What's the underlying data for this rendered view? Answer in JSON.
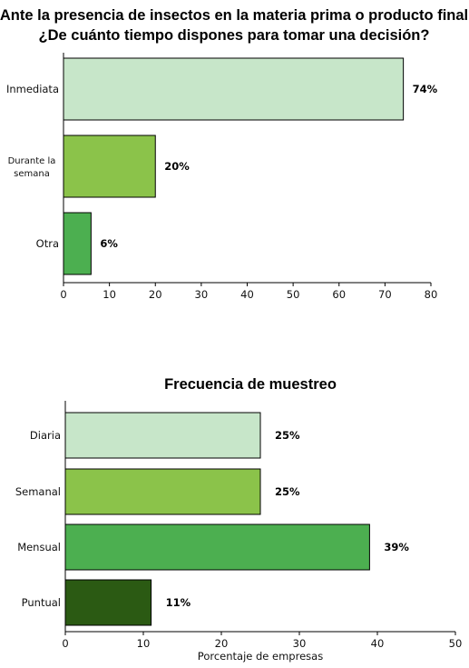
{
  "chart_data": [
    {
      "type": "bar",
      "orientation": "horizontal",
      "title_lines": [
        "Ante la presencia de insectos en la materia prima o producto final",
        "¿De cuánto tiempo dispones para tomar una decisión?"
      ],
      "categories": [
        {
          "lines": [
            "Inmediata"
          ]
        },
        {
          "lines": [
            "Durante la",
            "semana"
          ]
        },
        {
          "lines": [
            "Otra"
          ]
        }
      ],
      "values": [
        74,
        20,
        6
      ],
      "value_labels": [
        "74%",
        "20%",
        "6%"
      ],
      "colors": [
        "#c7e6c9",
        "#8bc34a",
        "#4caf50"
      ],
      "xlim": [
        0,
        80
      ],
      "xticks": [
        "0",
        "10",
        "20",
        "30",
        "40",
        "50",
        "60",
        "70",
        "80"
      ],
      "xlabel": "",
      "grid": false,
      "legend": "none"
    },
    {
      "type": "bar",
      "orientation": "horizontal",
      "title_lines": [
        "Frecuencia de muestreo"
      ],
      "categories": [
        {
          "lines": [
            "Diaria"
          ]
        },
        {
          "lines": [
            "Semanal"
          ]
        },
        {
          "lines": [
            "Mensual"
          ]
        },
        {
          "lines": [
            "Puntual"
          ]
        }
      ],
      "values": [
        25,
        25,
        39,
        11
      ],
      "value_labels": [
        "25%",
        "25%",
        "39%",
        "11%"
      ],
      "colors": [
        "#c7e6c9",
        "#8bc34a",
        "#4caf50",
        "#2b5a13"
      ],
      "xlim": [
        0,
        50
      ],
      "xticks": [
        "0",
        "10",
        "20",
        "30",
        "40",
        "50"
      ],
      "xlabel": "Porcentaje de empresas",
      "grid": false,
      "legend": "none"
    }
  ]
}
